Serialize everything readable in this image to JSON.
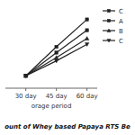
{
  "chart_data": {
    "type": "line",
    "title": "ount of Whey based Papaya RTS Be",
    "x_label": "orage period",
    "x": [
      30,
      45,
      60
    ],
    "series": [
      {
        "name": "C",
        "color": "#222222",
        "marker": "square",
        "values": [
          1.0,
          4.5,
          7.8
        ]
      },
      {
        "name": "A",
        "color": "#222222",
        "marker": "square",
        "values": [
          1.0,
          3.8,
          6.5
        ]
      },
      {
        "name": "B",
        "color": "#222222",
        "marker": "triangle-up",
        "values": [
          1.0,
          3.2,
          5.5
        ]
      },
      {
        "name": "C",
        "color": "#222222",
        "marker": "triangle-down",
        "values": [
          1.0,
          2.8,
          4.8
        ]
      }
    ],
    "xlim": [
      20,
      65
    ],
    "xticks": [
      {
        "value": 30,
        "label": "30 day"
      },
      {
        "value": 45,
        "label": "45 day"
      },
      {
        "value": 60,
        "label": "60 day"
      }
    ],
    "ylim": [
      -0.5,
      9.5
    ],
    "tick_labels": "x",
    "legend": "right",
    "grid": false
  }
}
